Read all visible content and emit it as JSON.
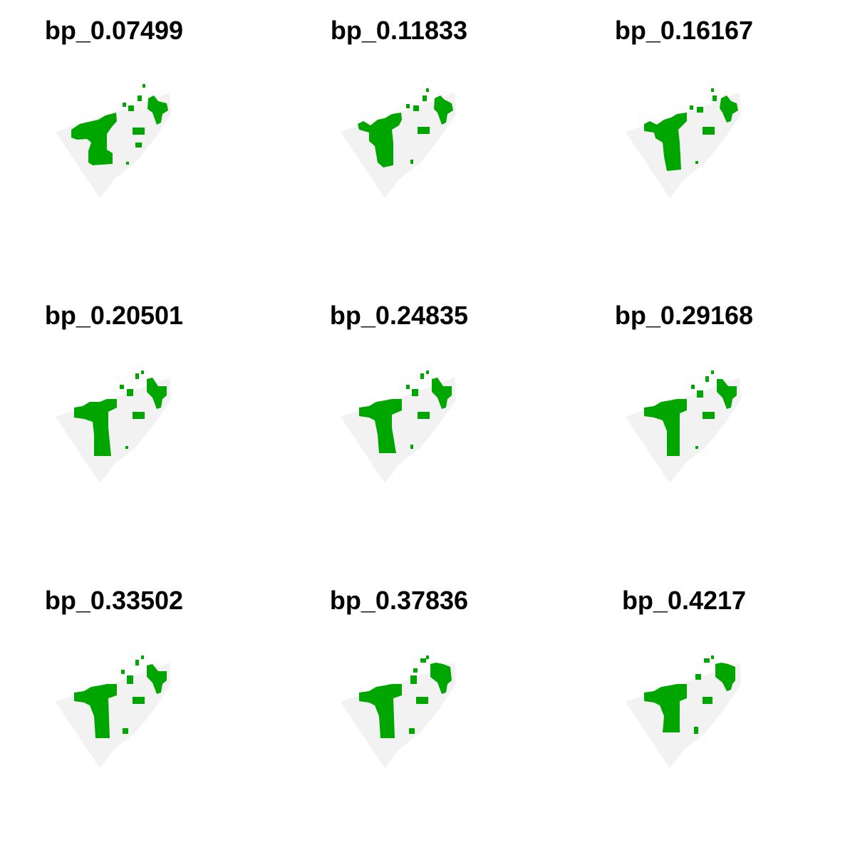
{
  "colors": {
    "background": "#ffffff",
    "region": "#f2f2f2",
    "presence": "#00a600"
  },
  "panels": [
    {
      "title": "bp_0.07499"
    },
    {
      "title": "bp_0.11833"
    },
    {
      "title": "bp_0.16167"
    },
    {
      "title": "bp_0.20501"
    },
    {
      "title": "bp_0.24835"
    },
    {
      "title": "bp_0.29168"
    },
    {
      "title": "bp_0.33502"
    },
    {
      "title": "bp_0.37836"
    },
    {
      "title": "bp_0.4217"
    }
  ]
}
